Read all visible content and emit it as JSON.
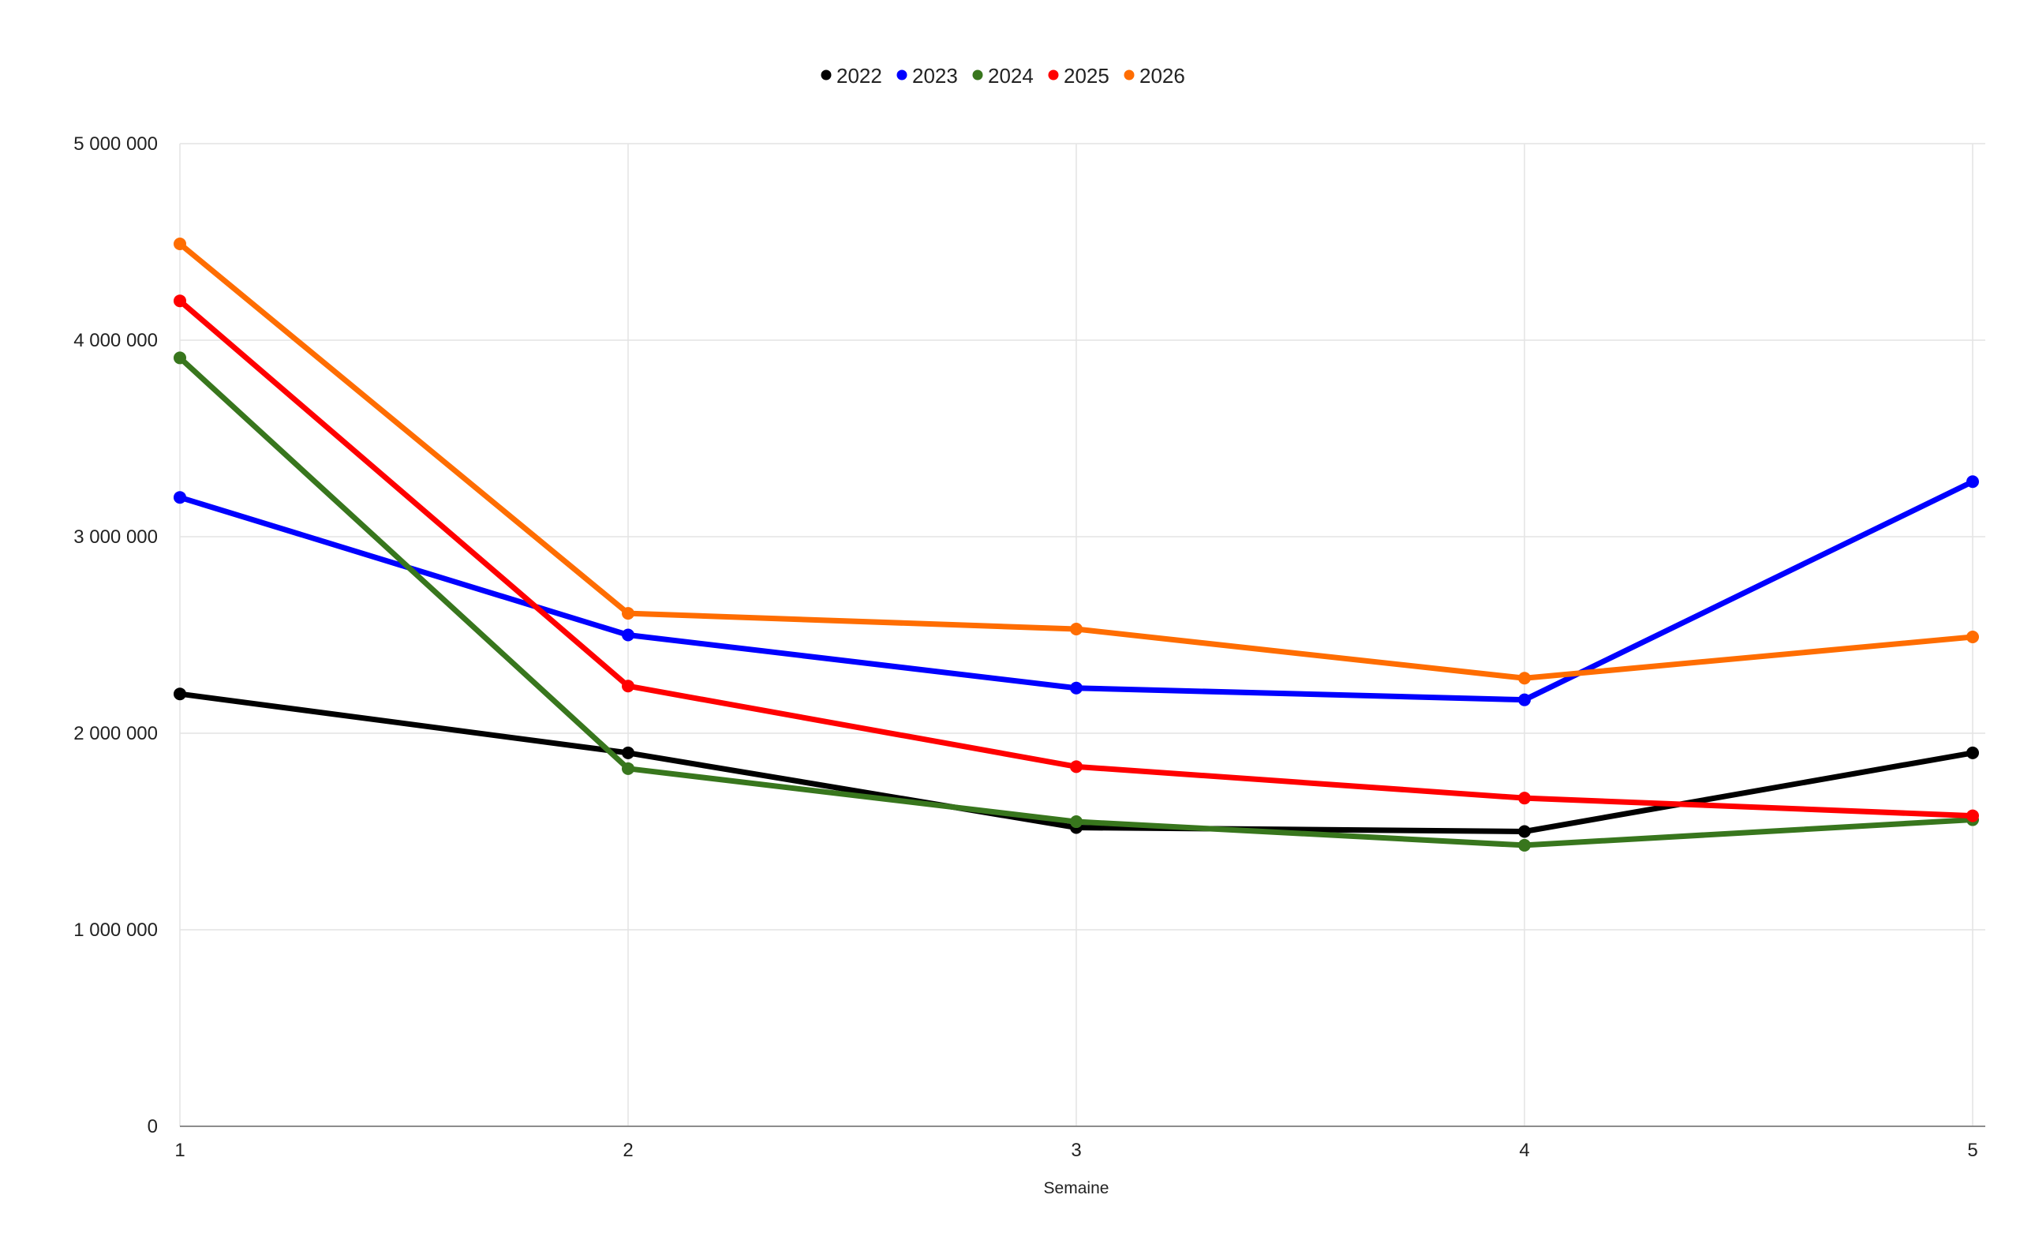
{
  "chart_data": {
    "type": "line",
    "title": "",
    "xlabel": "Semaine",
    "ylabel": "",
    "x": [
      1,
      2,
      3,
      4,
      5
    ],
    "x_tick_labels": [
      "1",
      "2",
      "3",
      "4",
      "5"
    ],
    "ylim": [
      0,
      5000000
    ],
    "y_ticks": [
      0,
      1000000,
      2000000,
      3000000,
      4000000,
      5000000
    ],
    "y_tick_labels": [
      "0",
      "1 000 000",
      "2 000 000",
      "3 000 000",
      "4 000 000",
      "5 000 000"
    ],
    "grid": true,
    "legend_position": "top-center",
    "series": [
      {
        "name": "2022",
        "color": "#000000",
        "values": [
          2200000,
          1900000,
          1520000,
          1500000,
          1900000
        ]
      },
      {
        "name": "2023",
        "color": "#0000ff",
        "values": [
          3200000,
          2500000,
          2230000,
          2170000,
          3280000
        ]
      },
      {
        "name": "2024",
        "color": "#38761d",
        "values": [
          3910000,
          1820000,
          1550000,
          1430000,
          1560000
        ]
      },
      {
        "name": "2025",
        "color": "#ff0000",
        "values": [
          4200000,
          2240000,
          1830000,
          1670000,
          1580000
        ]
      },
      {
        "name": "2026",
        "color": "#ff6d01",
        "values": [
          4490000,
          2610000,
          2530000,
          2280000,
          2490000
        ]
      }
    ]
  }
}
